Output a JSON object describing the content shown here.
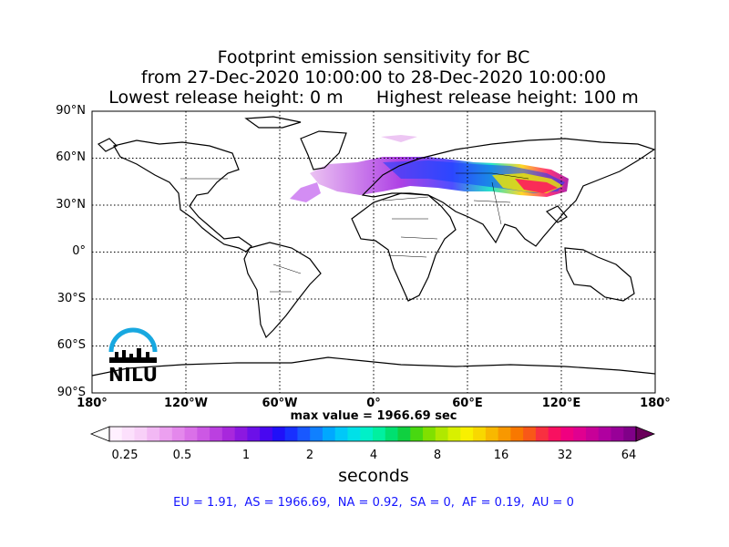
{
  "title": {
    "line1": "Footprint emission sensitivity for BC",
    "line2": "from 27-Dec-2020 10:00:00 to 28-Dec-2020 10:00:00",
    "line3": "Lowest release height: 0 m      Highest release height: 100 m"
  },
  "map": {
    "lat_labels": [
      "90°N",
      "60°N",
      "30°N",
      "0°",
      "30°S",
      "60°S",
      "90°S"
    ],
    "lon_labels": [
      "180°",
      "120°W",
      "60°W",
      "0°",
      "60°E",
      "120°E",
      "180°"
    ],
    "grid": "dotted"
  },
  "max_value": "max value = 1966.69 sec",
  "colorbar": {
    "ticks": [
      "0.25",
      "0.5",
      "1",
      "2",
      "4",
      "8",
      "16",
      "32",
      "64"
    ],
    "unit": "seconds",
    "scale": "log"
  },
  "regions": "EU = 1.91,  AS = 1966.69,  NA = 0.92,  SA = 0,  AF = 0.19,  AU = 0",
  "logo": {
    "text": "NILU",
    "color": "#18a8e0"
  }
}
